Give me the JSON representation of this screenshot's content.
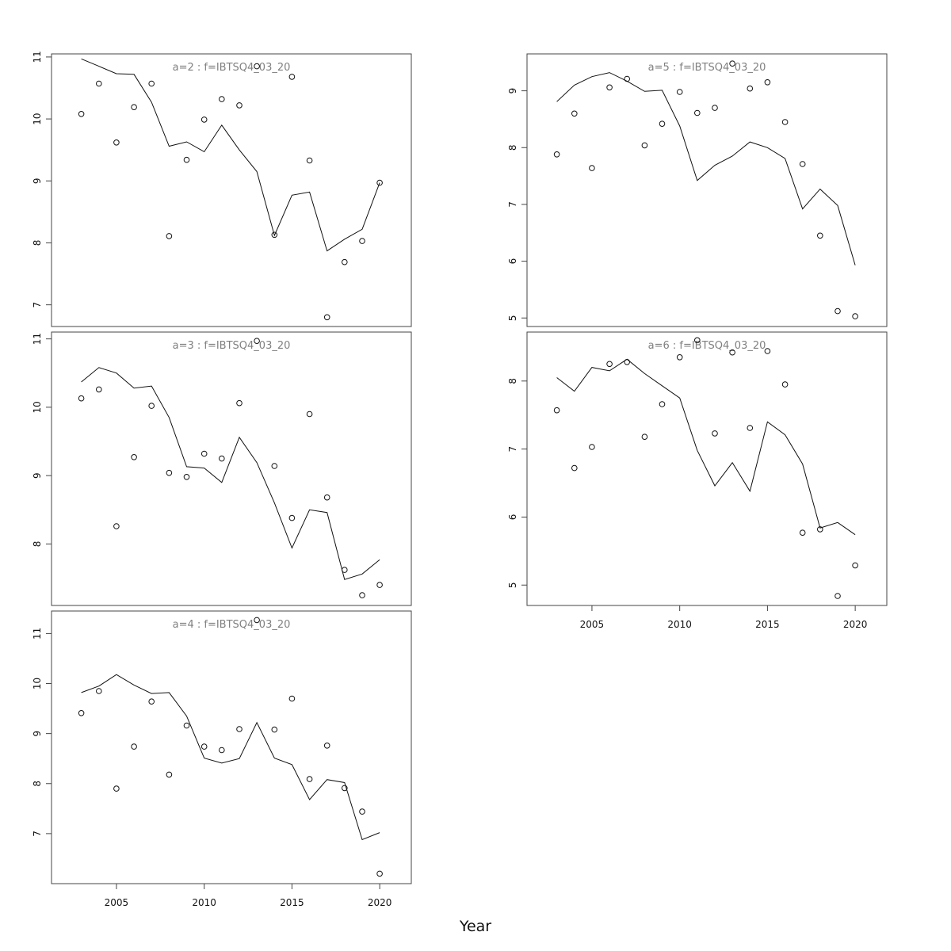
{
  "figure": {
    "xlabel": "Year"
  },
  "chart_data": [
    {
      "type": "scatter",
      "title": "a=2 : f=IBTSQ4_03_20",
      "xlabel": "",
      "ylabel": "",
      "x_ticks": [],
      "y_ticks": [
        7,
        8,
        9,
        10,
        11
      ],
      "xlim": [
        2001.3,
        2021.8
      ],
      "ylim": [
        6.65,
        11.05
      ],
      "grid": false,
      "series": [
        {
          "kind": "line",
          "x": [
            2003,
            2004,
            2005,
            2006,
            2007,
            2008,
            2009,
            2010,
            2011,
            2012,
            2013,
            2014,
            2015,
            2016,
            2017,
            2018,
            2019,
            2020
          ],
          "values": [
            10.97,
            10.85,
            10.73,
            10.72,
            10.27,
            9.56,
            9.63,
            9.47,
            9.9,
            9.5,
            9.15,
            8.12,
            8.77,
            8.82,
            7.87,
            8.06,
            8.22,
            8.97
          ]
        },
        {
          "kind": "points",
          "x": [
            2003,
            2004,
            2005,
            2006,
            2007,
            2008,
            2009,
            2010,
            2011,
            2012,
            2013,
            2014,
            2015,
            2016,
            2017,
            2018,
            2019,
            2020
          ],
          "values": [
            10.08,
            10.57,
            9.62,
            10.19,
            10.57,
            8.11,
            9.34,
            9.99,
            10.32,
            10.22,
            10.85,
            8.13,
            10.68,
            9.33,
            6.8,
            7.69,
            8.03,
            8.97
          ]
        }
      ]
    },
    {
      "type": "scatter",
      "title": "a=5 : f=IBTSQ4_03_20",
      "xlabel": "",
      "ylabel": "",
      "x_ticks": [],
      "y_ticks": [
        5,
        6,
        7,
        8,
        9
      ],
      "xlim": [
        2001.3,
        2021.8
      ],
      "ylim": [
        4.85,
        9.65
      ],
      "grid": false,
      "series": [
        {
          "kind": "line",
          "x": [
            2003,
            2004,
            2005,
            2006,
            2007,
            2008,
            2009,
            2010,
            2011,
            2012,
            2013,
            2014,
            2015,
            2016,
            2017,
            2018,
            2019,
            2020
          ],
          "values": [
            8.81,
            9.1,
            9.25,
            9.32,
            9.17,
            8.99,
            9.01,
            8.38,
            7.42,
            7.69,
            7.85,
            8.1,
            8.0,
            7.81,
            6.92,
            7.27,
            6.98,
            5.93
          ]
        },
        {
          "kind": "points",
          "x": [
            2003,
            2004,
            2005,
            2006,
            2007,
            2008,
            2009,
            2010,
            2011,
            2012,
            2013,
            2014,
            2015,
            2016,
            2017,
            2018,
            2019,
            2020
          ],
          "values": [
            7.88,
            8.6,
            7.64,
            9.06,
            9.21,
            8.04,
            8.42,
            8.98,
            8.61,
            8.7,
            9.48,
            9.04,
            9.15,
            8.45,
            7.71,
            6.45,
            5.12,
            5.03
          ]
        }
      ]
    },
    {
      "type": "scatter",
      "title": "a=3 : f=IBTSQ4_03_20",
      "xlabel": "",
      "ylabel": "",
      "x_ticks": [],
      "y_ticks": [
        8,
        9,
        10,
        11
      ],
      "xlim": [
        2001.3,
        2021.8
      ],
      "ylim": [
        7.1,
        11.1
      ],
      "grid": false,
      "series": [
        {
          "kind": "line",
          "x": [
            2003,
            2004,
            2005,
            2006,
            2007,
            2008,
            2009,
            2010,
            2011,
            2012,
            2013,
            2014,
            2015,
            2016,
            2017,
            2018,
            2019,
            2020
          ],
          "values": [
            10.37,
            10.58,
            10.5,
            10.28,
            10.31,
            9.85,
            9.13,
            9.11,
            8.9,
            9.56,
            9.19,
            8.6,
            7.94,
            8.5,
            8.46,
            7.48,
            7.56,
            7.77
          ]
        },
        {
          "kind": "points",
          "x": [
            2003,
            2004,
            2005,
            2006,
            2007,
            2008,
            2009,
            2010,
            2011,
            2012,
            2013,
            2014,
            2015,
            2016,
            2017,
            2018,
            2019,
            2020
          ],
          "values": [
            10.13,
            10.26,
            8.26,
            9.27,
            10.02,
            9.04,
            8.98,
            9.32,
            9.25,
            10.06,
            10.97,
            9.14,
            8.38,
            9.9,
            8.68,
            7.62,
            7.25,
            7.4
          ]
        }
      ]
    },
    {
      "type": "scatter",
      "title": "a=6 : f=IBTSQ4_03_20",
      "xlabel": "",
      "ylabel": "",
      "x_ticks": [
        2005,
        2010,
        2015,
        2020
      ],
      "y_ticks": [
        5,
        6,
        7,
        8
      ],
      "xlim": [
        2001.3,
        2021.8
      ],
      "ylim": [
        4.7,
        8.72
      ],
      "grid": false,
      "series": [
        {
          "kind": "line",
          "x": [
            2003,
            2004,
            2005,
            2006,
            2007,
            2008,
            2009,
            2010,
            2011,
            2012,
            2013,
            2014,
            2015,
            2016,
            2017,
            2018,
            2019,
            2020
          ],
          "values": [
            8.05,
            7.85,
            8.2,
            8.15,
            8.32,
            8.11,
            7.93,
            7.75,
            6.98,
            6.46,
            6.8,
            6.38,
            7.4,
            7.21,
            6.78,
            5.84,
            5.92,
            5.74
          ]
        },
        {
          "kind": "points",
          "x": [
            2003,
            2004,
            2005,
            2006,
            2007,
            2008,
            2009,
            2010,
            2011,
            2012,
            2013,
            2014,
            2015,
            2016,
            2017,
            2018,
            2019,
            2020
          ],
          "values": [
            7.57,
            6.72,
            7.03,
            8.25,
            8.28,
            7.18,
            7.66,
            8.35,
            8.6,
            7.23,
            8.42,
            7.31,
            8.44,
            7.95,
            5.77,
            5.82,
            4.84,
            5.29
          ]
        }
      ]
    },
    {
      "type": "scatter",
      "title": "a=4 : f=IBTSQ4_03_20",
      "xlabel": "",
      "ylabel": "",
      "x_ticks": [
        2005,
        2010,
        2015,
        2020
      ],
      "y_ticks": [
        7,
        8,
        9,
        10,
        11
      ],
      "xlim": [
        2001.3,
        2021.8
      ],
      "ylim": [
        6.0,
        11.45
      ],
      "grid": false,
      "series": [
        {
          "kind": "line",
          "x": [
            2003,
            2004,
            2005,
            2006,
            2007,
            2008,
            2009,
            2010,
            2011,
            2012,
            2013,
            2014,
            2015,
            2016,
            2017,
            2018,
            2019,
            2020
          ],
          "values": [
            9.82,
            9.95,
            10.18,
            9.97,
            9.8,
            9.82,
            9.35,
            8.51,
            8.41,
            8.5,
            9.22,
            8.51,
            8.38,
            7.68,
            8.08,
            8.02,
            6.88,
            7.02
          ]
        },
        {
          "kind": "points",
          "x": [
            2003,
            2004,
            2005,
            2006,
            2007,
            2008,
            2009,
            2010,
            2011,
            2012,
            2013,
            2014,
            2015,
            2016,
            2017,
            2018,
            2019,
            2020
          ],
          "values": [
            9.41,
            9.85,
            7.9,
            8.74,
            9.64,
            8.18,
            9.16,
            8.74,
            8.67,
            9.09,
            11.27,
            9.08,
            9.7,
            8.09,
            8.76,
            7.91,
            7.44,
            6.2
          ]
        }
      ]
    }
  ]
}
